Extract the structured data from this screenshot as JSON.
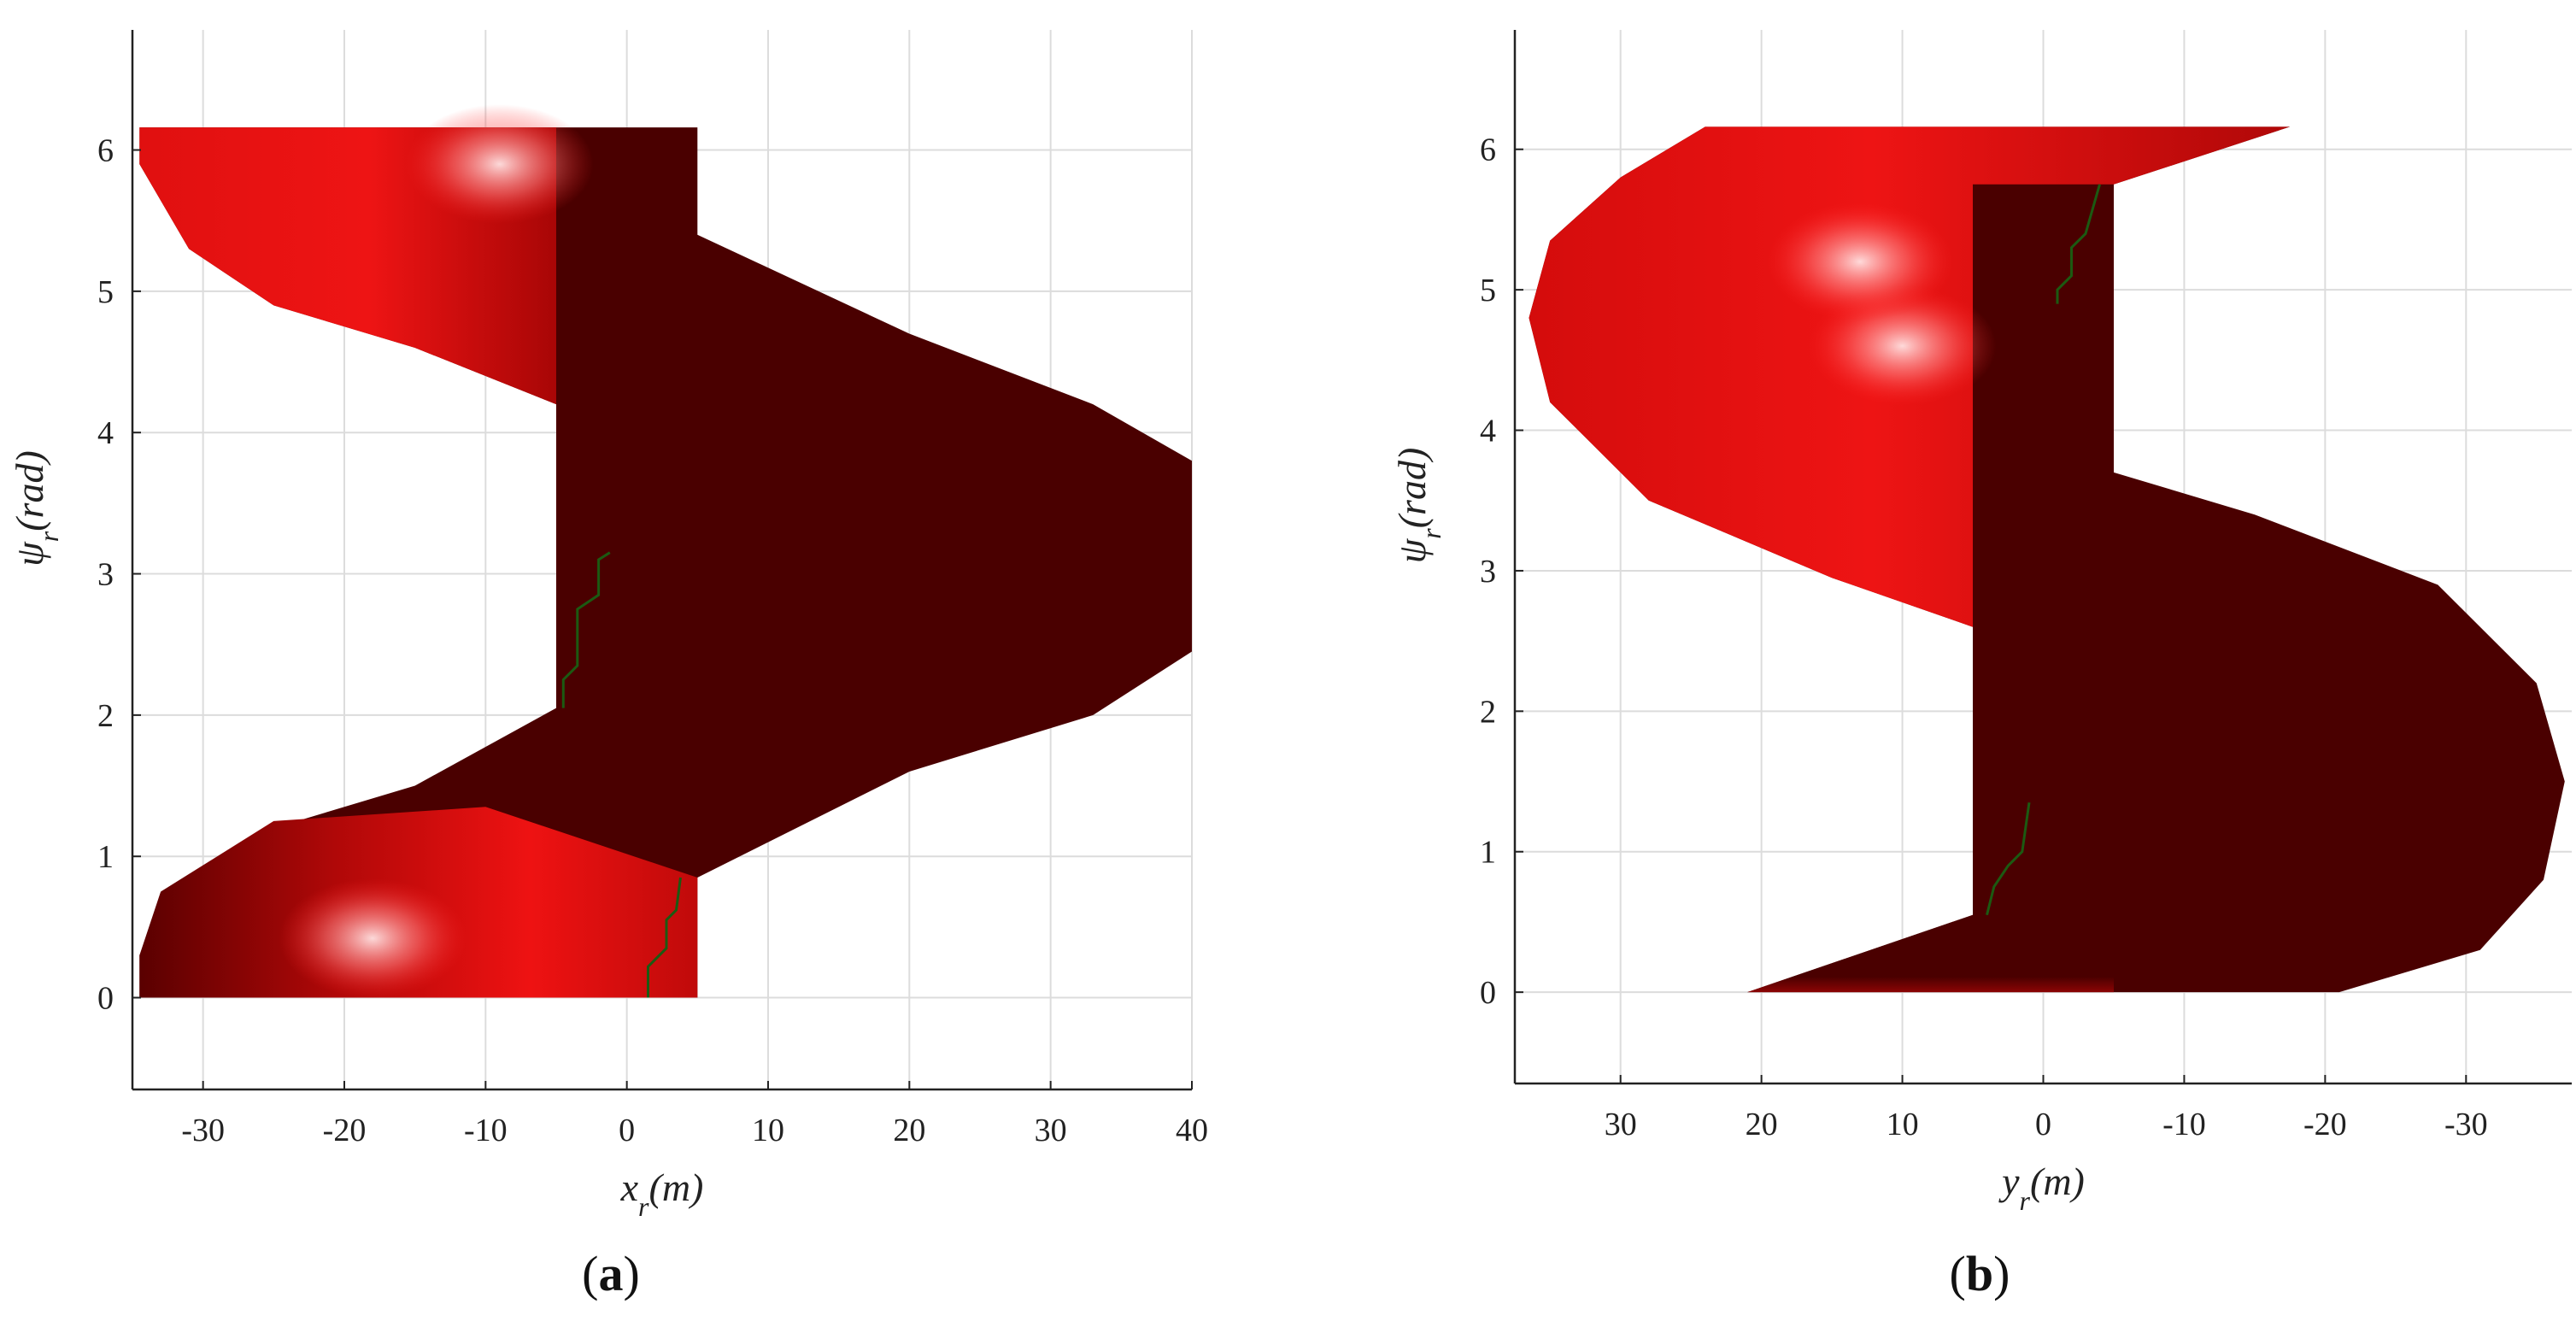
{
  "colors": {
    "dark": "#4a0000",
    "mid": "#c80808",
    "bright": "#ee1010",
    "highlight": "#ffd9d9",
    "trace": "#1c5a12",
    "grid": "#dcdcdc"
  },
  "chart_data": [
    {
      "type": "surface",
      "panel_label": "(a)",
      "xlabel": "x_r(m)",
      "ylabel": "ψ_r(rad)",
      "xlim": [
        -35,
        40
      ],
      "ylim": [
        -0.65,
        6.85
      ],
      "xticks": [
        -30,
        -20,
        -10,
        0,
        10,
        20,
        30,
        40
      ],
      "xtick_labels": [
        "-30",
        "-20",
        "-10",
        "0",
        "10",
        "20",
        "30",
        "40"
      ],
      "yticks": [
        0,
        1,
        2,
        3,
        4,
        5,
        6
      ],
      "ytick_labels": [
        "0",
        "1",
        "2",
        "3",
        "4",
        "5",
        "6"
      ],
      "x_reversed": false,
      "grid": true,
      "surface": {
        "strip_halfwidth": 5,
        "helix_amplitude": 35,
        "psi_range": [
          0,
          6.16
        ],
        "outline": [
          [
            5,
            0
          ],
          [
            -34.5,
            0
          ],
          [
            -34.5,
            0.3
          ],
          [
            -32.5,
            0.7
          ],
          [
            -25,
            1.2
          ],
          [
            -15,
            1.5
          ],
          [
            -5,
            2.05
          ],
          [
            -5,
            6.16
          ],
          [
            -34.5,
            6.16
          ],
          [
            -34.5,
            5.9
          ],
          [
            -31,
            5.3
          ],
          [
            -25,
            4.9
          ],
          [
            -15,
            4.6
          ],
          [
            -5,
            4.2
          ],
          [
            -5,
            6.16
          ],
          [
            5,
            6.16
          ],
          [
            5,
            5.4
          ],
          [
            20,
            4.7
          ],
          [
            33,
            4.2
          ],
          [
            40,
            3.8
          ],
          [
            40,
            2.45
          ],
          [
            33,
            2
          ],
          [
            20,
            1.6
          ],
          [
            5,
            0.85
          ]
        ],
        "upper_wing": [
          [
            -5,
            6.16
          ],
          [
            -34.5,
            6.16
          ],
          [
            -34.5,
            5.9
          ],
          [
            -31,
            5.3
          ],
          [
            -25,
            4.9
          ],
          [
            -15,
            4.6
          ],
          [
            -5,
            4.2
          ]
        ],
        "lower_wing": [
          [
            5,
            0.85
          ],
          [
            -10,
            1.35
          ],
          [
            -25,
            1.25
          ],
          [
            -33,
            0.75
          ],
          [
            -34.5,
            0.3
          ],
          [
            -34.5,
            0
          ],
          [
            5,
            0
          ]
        ],
        "highlights": [
          [
            -9,
            5.9
          ],
          [
            -18,
            0.42
          ]
        ],
        "trace_segments": [
          [
            [
              -4.5,
              2.05
            ],
            [
              -4.5,
              2.25
            ],
            [
              -3.5,
              2.35
            ],
            [
              -3.5,
              2.75
            ],
            [
              -2,
              2.85
            ],
            [
              -2,
              3.1
            ],
            [
              -1.2,
              3.15
            ]
          ],
          [
            [
              1.5,
              0
            ],
            [
              1.5,
              0.22
            ],
            [
              2.8,
              0.35
            ],
            [
              2.8,
              0.55
            ],
            [
              3.5,
              0.62
            ],
            [
              3.8,
              0.85
            ]
          ]
        ]
      }
    },
    {
      "type": "surface",
      "panel_label": "(b)",
      "xlabel": "y_r(m)",
      "ylabel": "ψ_r(rad)",
      "xlim": [
        37.5,
        -37.5
      ],
      "ylim": [
        -0.65,
        6.85
      ],
      "xticks": [
        30,
        20,
        10,
        0,
        -10,
        -20,
        -30
      ],
      "xtick_labels": [
        "30",
        "20",
        "10",
        "0",
        "-10",
        "-20",
        "-30"
      ],
      "yticks": [
        0,
        1,
        2,
        3,
        4,
        5,
        6
      ],
      "ytick_labels": [
        "0",
        "1",
        "2",
        "3",
        "4",
        "5",
        "6"
      ],
      "x_reversed": true,
      "grid": true,
      "surface": {
        "strip_halfwidth": 5,
        "helix_amplitude": 37,
        "psi_range": [
          0,
          6.16
        ],
        "outline": [
          [
            -21,
            0
          ],
          [
            21,
            0
          ],
          [
            5,
            0.55
          ],
          [
            5,
            2.6
          ],
          [
            15,
            2.95
          ],
          [
            28,
            3.5
          ],
          [
            35,
            4.2
          ],
          [
            36.5,
            4.8
          ],
          [
            35,
            5.35
          ],
          [
            30,
            5.8
          ],
          [
            24,
            6.16
          ],
          [
            -17.5,
            6.16
          ],
          [
            -5,
            5.75
          ],
          [
            -5,
            3.7
          ],
          [
            -15,
            3.4
          ],
          [
            -28,
            2.9
          ],
          [
            -35,
            2.2
          ],
          [
            -37,
            1.5
          ],
          [
            -35.5,
            0.8
          ],
          [
            -31,
            0.3
          ]
        ],
        "upper_wing": [
          [
            -17.5,
            6.16
          ],
          [
            24,
            6.16
          ],
          [
            30,
            5.8
          ],
          [
            35,
            5.35
          ],
          [
            36.5,
            4.8
          ],
          [
            35,
            4.2
          ],
          [
            28,
            3.5
          ],
          [
            15,
            2.95
          ],
          [
            5,
            2.6
          ],
          [
            5,
            5.75
          ],
          [
            -5,
            5.75
          ]
        ],
        "lower_wing": [
          [
            21,
            0
          ],
          [
            5,
            0.55
          ],
          [
            5,
            0.5
          ],
          [
            -5,
            0.5
          ],
          [
            -5,
            0
          ]
        ],
        "highlights": [
          [
            10,
            4.6
          ],
          [
            13,
            5.2
          ]
        ],
        "trace_segments": [
          [
            [
              -4,
              5.75
            ],
            [
              -3,
              5.4
            ],
            [
              -2,
              5.3
            ],
            [
              -2,
              5.1
            ],
            [
              -1,
              5
            ],
            [
              -1,
              4.9
            ]
          ],
          [
            [
              4,
              0.55
            ],
            [
              3.5,
              0.75
            ],
            [
              2.5,
              0.9
            ],
            [
              1.5,
              1
            ],
            [
              1,
              1.35
            ]
          ]
        ]
      }
    }
  ]
}
